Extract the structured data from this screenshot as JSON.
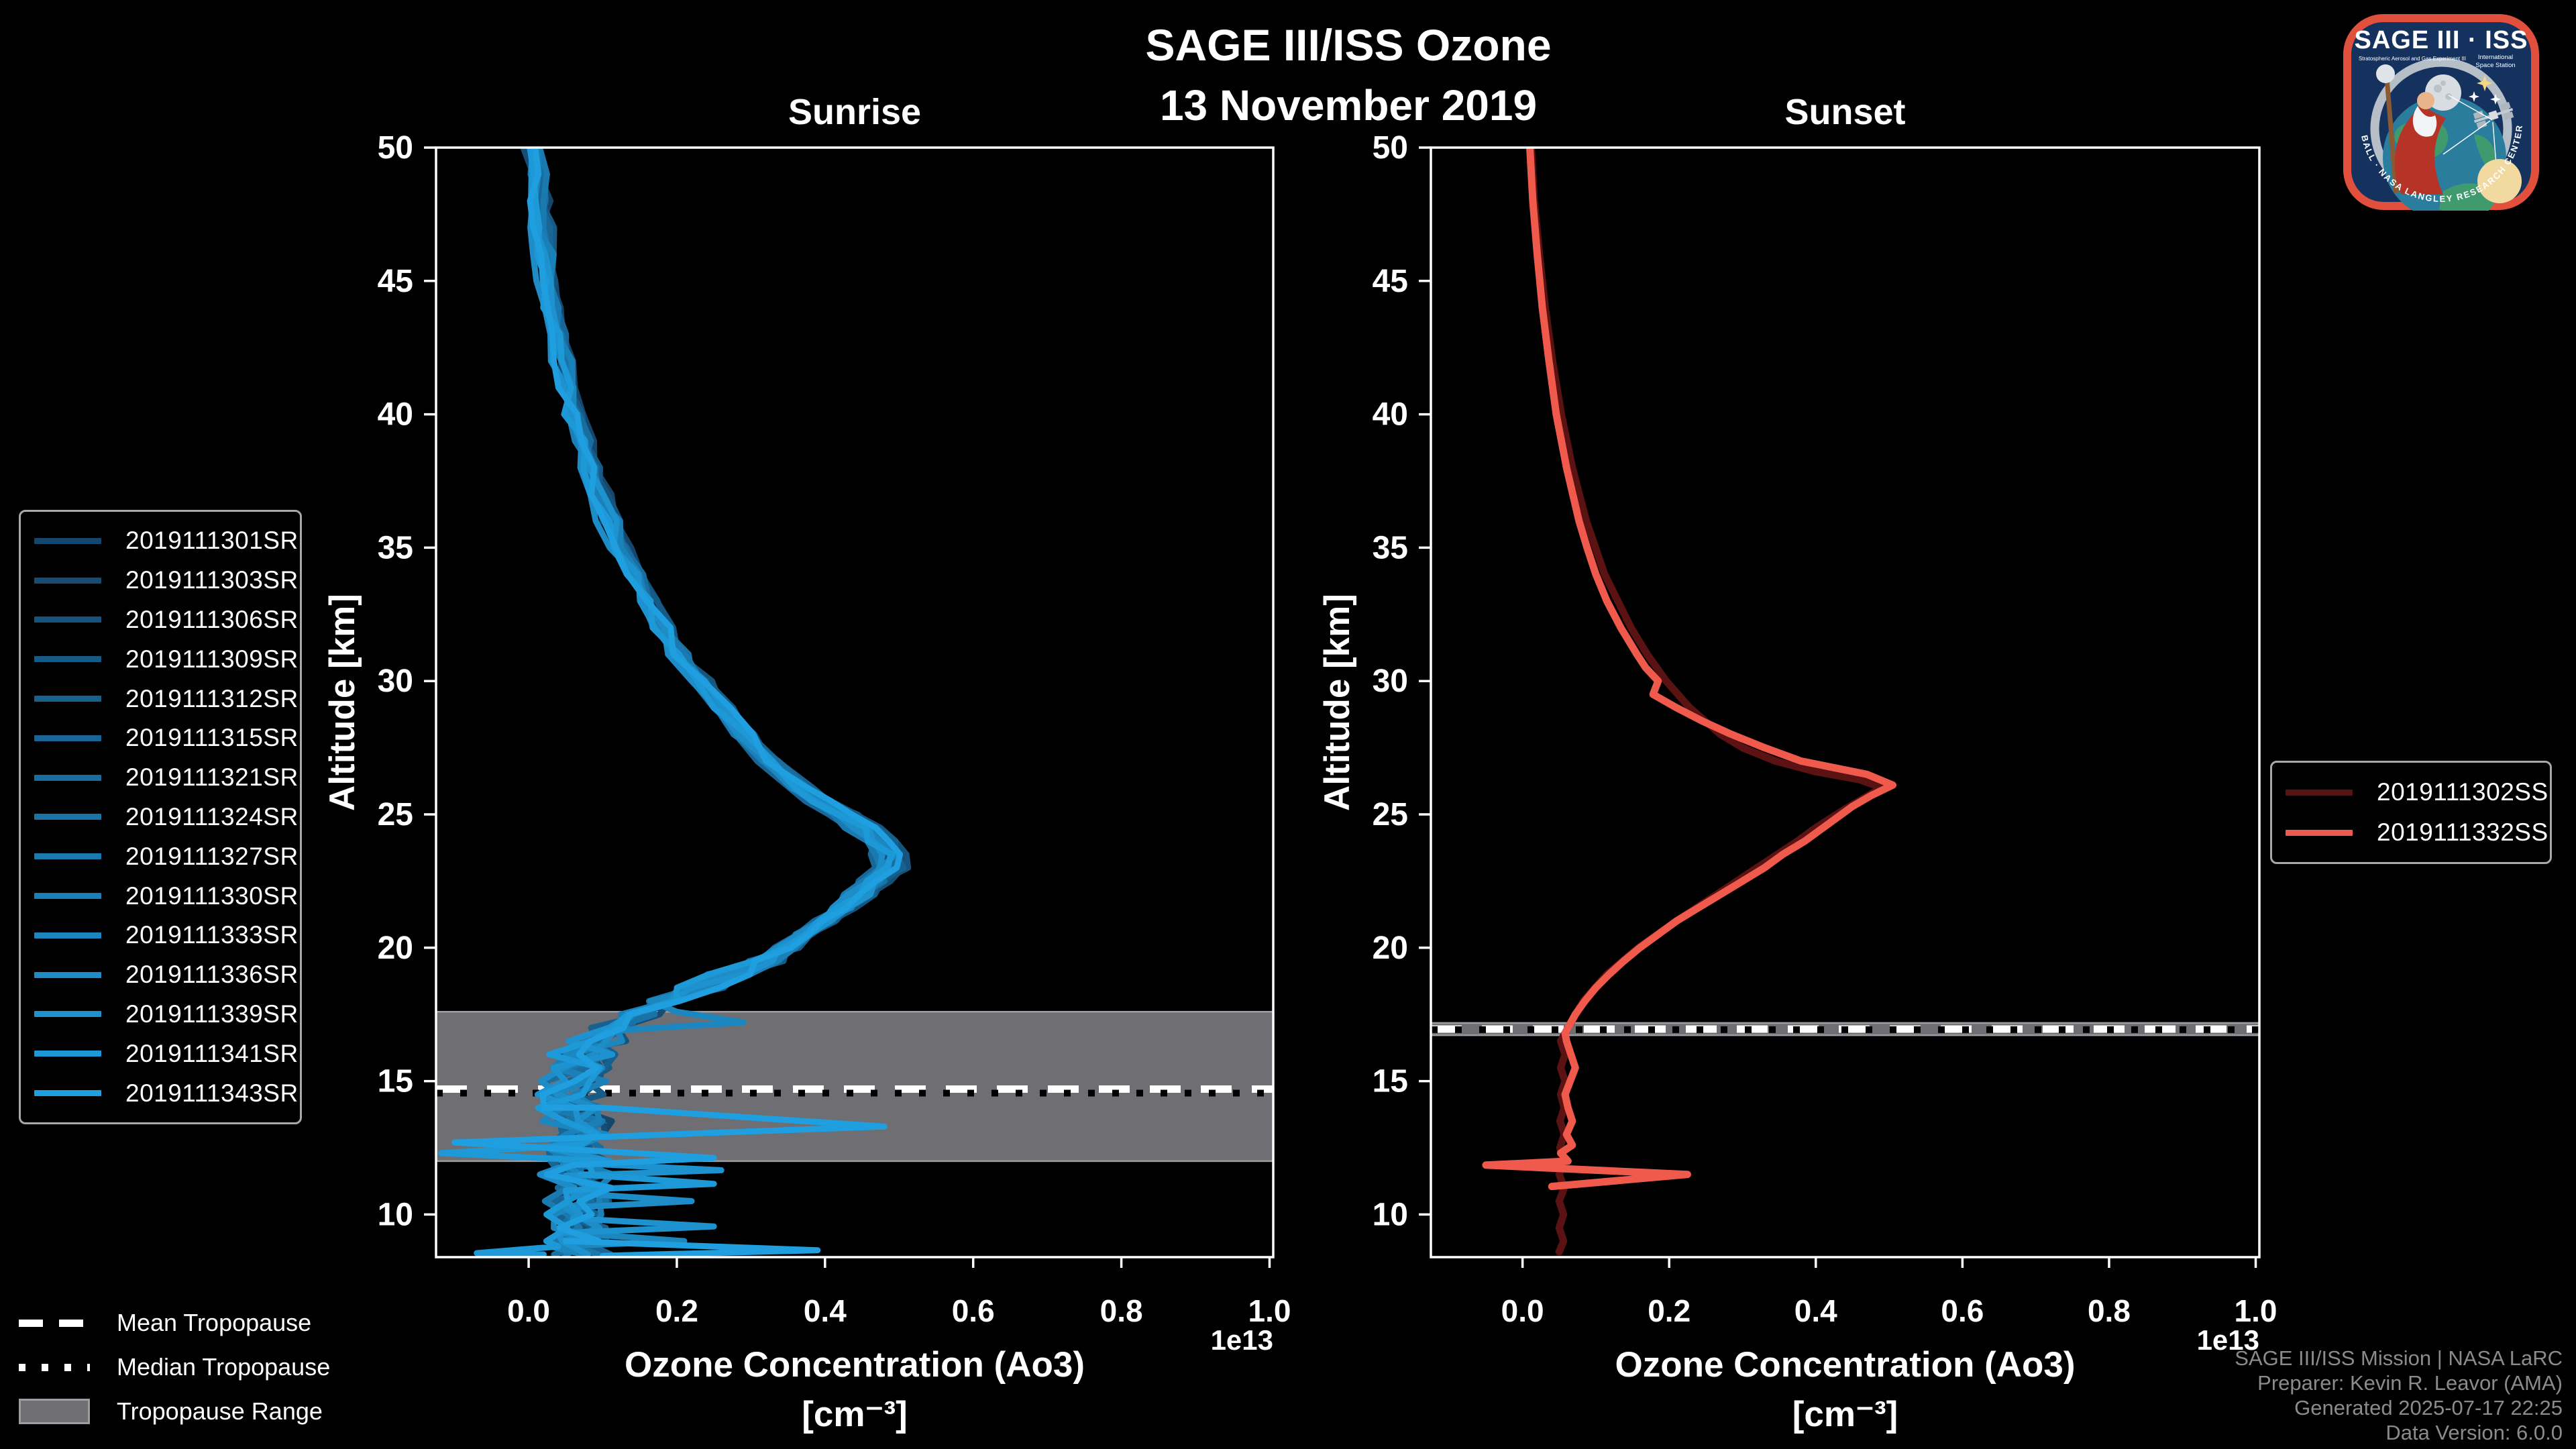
{
  "title": {
    "line1": "SAGE III/ISS Ozone",
    "line2": "13 November 2019"
  },
  "colors": {
    "background": "#000000",
    "axes": "#ffffff",
    "tropopause_band": "#6e6e73",
    "tropopause_band_border": "#9d9da2",
    "mean_line": "#ffffff",
    "median_line": "#000000",
    "credits_text": "#8b8b8b",
    "legend_border": "#a8a8a8"
  },
  "chart_data": {
    "type": "line",
    "orientation": "vertical-profile",
    "x_label": "Ozone Concentration (Ao3)",
    "x_unit": "[cm⁻³]",
    "x_offset_label": "1e13",
    "y_label": "Altitude [km]",
    "x_ticks": [
      0.0,
      0.2,
      0.4,
      0.6,
      0.8,
      1.0
    ],
    "y_ticks": [
      10,
      15,
      20,
      25,
      30,
      35,
      40,
      45,
      50
    ],
    "x_range": [
      -0.125,
      1.005
    ],
    "y_range": [
      8.4,
      50
    ],
    "grid": false,
    "panels": [
      {
        "id": "sunrise",
        "title": "Sunrise",
        "line_width": 9,
        "series_mode": "base_plus_jitter",
        "jitter": {
          "seed": 20191113,
          "amp_above_20": 0.012,
          "amp_17_20": 0.028,
          "amp_below_17": 0.045,
          "bias": 0.01,
          "scale_spread": 0.06
        },
        "base_profile": [
          [
            50,
            0.005
          ],
          [
            49,
            0.008
          ],
          [
            48,
            0.011
          ],
          [
            47,
            0.015
          ],
          [
            46,
            0.019
          ],
          [
            45,
            0.024
          ],
          [
            44,
            0.029
          ],
          [
            43,
            0.035
          ],
          [
            42,
            0.042
          ],
          [
            41,
            0.05
          ],
          [
            40,
            0.058
          ],
          [
            39,
            0.068
          ],
          [
            38,
            0.079
          ],
          [
            37,
            0.091
          ],
          [
            36,
            0.105
          ],
          [
            35,
            0.12
          ],
          [
            34,
            0.137
          ],
          [
            33,
            0.156
          ],
          [
            32,
            0.177
          ],
          [
            31,
            0.2
          ],
          [
            30,
            0.225
          ],
          [
            29,
            0.252
          ],
          [
            28,
            0.282
          ],
          [
            27,
            0.315
          ],
          [
            26,
            0.355
          ],
          [
            25.5,
            0.385
          ],
          [
            25,
            0.415
          ],
          [
            24.5,
            0.44
          ],
          [
            24,
            0.462
          ],
          [
            23.5,
            0.475
          ],
          [
            23,
            0.472
          ],
          [
            22.5,
            0.458
          ],
          [
            22,
            0.438
          ],
          [
            21.5,
            0.415
          ],
          [
            21,
            0.39
          ],
          [
            20.5,
            0.365
          ],
          [
            20,
            0.34
          ],
          [
            19.5,
            0.305
          ],
          [
            19,
            0.266
          ],
          [
            18.5,
            0.225
          ],
          [
            18,
            0.183
          ],
          [
            17.5,
            0.142
          ],
          [
            17,
            0.105
          ],
          [
            16.5,
            0.082
          ],
          [
            16,
            0.068
          ],
          [
            15.5,
            0.06
          ],
          [
            15,
            0.055
          ],
          [
            14.5,
            0.052
          ],
          [
            14,
            0.055
          ],
          [
            13.5,
            0.06
          ],
          [
            13,
            0.064
          ],
          [
            12.5,
            0.062
          ],
          [
            12,
            0.066
          ],
          [
            11.5,
            0.063
          ],
          [
            11,
            0.067
          ],
          [
            10.5,
            0.062
          ],
          [
            10,
            0.066
          ],
          [
            9.5,
            0.062
          ],
          [
            9,
            0.066
          ],
          [
            8.5,
            0.063
          ]
        ],
        "events": [
          {
            "name": "2019111301SR",
            "color": "#14476e"
          },
          {
            "name": "2019111303SR",
            "color": "#154d76"
          },
          {
            "name": "2019111306SR",
            "color": "#16547e"
          },
          {
            "name": "2019111309SR",
            "color": "#165a86"
          },
          {
            "name": "2019111312SR",
            "color": "#17608f"
          },
          {
            "name": "2019111315SR",
            "color": "#186697"
          },
          {
            "name": "2019111321SR",
            "color": "#196d9f"
          },
          {
            "name": "2019111324SR",
            "color": "#1a73a7"
          },
          {
            "name": "2019111327SR",
            "color": "#1a79af"
          },
          {
            "name": "2019111330SR",
            "color": "#1b80b7"
          },
          {
            "name": "2019111333SR",
            "color": "#1c86bf",
            "anomalies": [
              [
                [
                  17.6,
                  0.2
                ],
                [
                  17.2,
                  0.29
                ],
                [
                  16.9,
                  0.12
                ]
              ],
              [
                [
                  9.3,
                  0.06
                ],
                [
                  9.0,
                  0.21
                ],
                [
                  8.8,
                  0.03
                ]
              ]
            ]
          },
          {
            "name": "2019111336SR",
            "color": "#1d8cc7",
            "anomalies": [
              [
                [
                  10.8,
                  0.06
                ],
                [
                  10.5,
                  0.22
                ],
                [
                  10.25,
                  0.05
                ]
              ]
            ]
          },
          {
            "name": "2019111339SR",
            "color": "#1d92cf",
            "anomalies": [
              [
                [
                  11.9,
                  0.08
                ],
                [
                  11.66,
                  0.26
                ],
                [
                  11.45,
                  0.05
                ]
              ],
              [
                [
                  9.85,
                  0.06
                ],
                [
                  9.55,
                  0.25
                ],
                [
                  9.3,
                  0.04
                ]
              ]
            ]
          },
          {
            "name": "2019111341SR",
            "color": "#1e99d8",
            "anomalies": [
              [
                [
                  12.6,
                  0.07
                ],
                [
                  12.3,
                  -0.118
                ],
                [
                  12.0,
                  0.08
                ]
              ],
              [
                [
                  11.5,
                  0.07
                ],
                [
                  11.15,
                  0.25
                ],
                [
                  10.9,
                  0.05
                ]
              ],
              [
                [
                  8.8,
                  0.04
                ],
                [
                  8.55,
                  -0.07
                ]
              ]
            ]
          },
          {
            "name": "2019111343SR",
            "color": "#1f9fe0",
            "anomalies": [
              [
                [
                  14.0,
                  0.1
                ],
                [
                  13.3,
                  0.48
                ],
                [
                  12.7,
                  -0.1
                ],
                [
                  12.12,
                  0.25
                ],
                [
                  11.85,
                  0.06
                ]
              ],
              [
                [
                  9.0,
                  0.05
                ],
                [
                  8.66,
                  0.39
                ],
                [
                  8.45,
                  0.1
                ]
              ]
            ]
          }
        ],
        "tropopause": {
          "mean": 14.7,
          "median": 14.55,
          "range": [
            12.0,
            17.6
          ]
        }
      },
      {
        "id": "sunset",
        "title": "Sunset",
        "line_width": 11,
        "series_mode": "explicit",
        "events": [
          {
            "name": "2019111302SS",
            "color": "#5a1212",
            "profile": [
              [
                50,
                0.012
              ],
              [
                48,
                0.016
              ],
              [
                46,
                0.023
              ],
              [
                44,
                0.031
              ],
              [
                42,
                0.041
              ],
              [
                40,
                0.053
              ],
              [
                38,
                0.068
              ],
              [
                36,
                0.087
              ],
              [
                34,
                0.112
              ],
              [
                32,
                0.148
              ],
              [
                31,
                0.17
              ],
              [
                30,
                0.196
              ],
              [
                29,
                0.228
              ],
              [
                28,
                0.27
              ],
              [
                27.5,
                0.3
              ],
              [
                27,
                0.345
              ],
              [
                26.6,
                0.4
              ],
              [
                26.3,
                0.46
              ],
              [
                26.0,
                0.49
              ],
              [
                25.6,
                0.465
              ],
              [
                25.2,
                0.44
              ],
              [
                24.5,
                0.4
              ],
              [
                24,
                0.375
              ],
              [
                23,
                0.32
              ],
              [
                22,
                0.265
              ],
              [
                21,
                0.21
              ],
              [
                20,
                0.158
              ],
              [
                19,
                0.115
              ],
              [
                18,
                0.083
              ],
              [
                17,
                0.062
              ],
              [
                16.5,
                0.052
              ],
              [
                16,
                0.058
              ],
              [
                15.5,
                0.052
              ],
              [
                15,
                0.058
              ],
              [
                14.5,
                0.052
              ],
              [
                14,
                0.057
              ],
              [
                13.5,
                0.051
              ],
              [
                13,
                0.057
              ],
              [
                12.5,
                0.051
              ],
              [
                12,
                0.057
              ],
              [
                11.5,
                0.05
              ],
              [
                11,
                0.057
              ],
              [
                10.5,
                0.05
              ],
              [
                10,
                0.056
              ],
              [
                9.5,
                0.05
              ],
              [
                9,
                0.056
              ],
              [
                8.6,
                0.05
              ]
            ]
          },
          {
            "name": "2019111332SS",
            "color": "#ef5a4c",
            "profile": [
              [
                50,
                0.01
              ],
              [
                48,
                0.014
              ],
              [
                46,
                0.02
              ],
              [
                44,
                0.027
              ],
              [
                42,
                0.036
              ],
              [
                40,
                0.046
              ],
              [
                38,
                0.06
              ],
              [
                36,
                0.077
              ],
              [
                35,
                0.088
              ],
              [
                34,
                0.1
              ],
              [
                33,
                0.115
              ],
              [
                32,
                0.134
              ],
              [
                31,
                0.156
              ],
              [
                30.5,
                0.168
              ],
              [
                30,
                0.185
              ],
              [
                29.5,
                0.178
              ],
              [
                29,
                0.21
              ],
              [
                28.5,
                0.245
              ],
              [
                28,
                0.285
              ],
              [
                27.5,
                0.33
              ],
              [
                27,
                0.38
              ],
              [
                26.5,
                0.47
              ],
              [
                26.1,
                0.505
              ],
              [
                25.7,
                0.475
              ],
              [
                25.3,
                0.45
              ],
              [
                25,
                0.435
              ],
              [
                24.5,
                0.41
              ],
              [
                24,
                0.385
              ],
              [
                23.5,
                0.355
              ],
              [
                23,
                0.33
              ],
              [
                22.5,
                0.3
              ],
              [
                22,
                0.27
              ],
              [
                21.5,
                0.24
              ],
              [
                21,
                0.21
              ],
              [
                20.5,
                0.185
              ],
              [
                20,
                0.16
              ],
              [
                19.5,
                0.138
              ],
              [
                19,
                0.118
              ],
              [
                18.5,
                0.1
              ],
              [
                18,
                0.085
              ],
              [
                17.5,
                0.072
              ],
              [
                17,
                0.062
              ],
              [
                16.8,
                0.058
              ],
              [
                16.5,
                0.06
              ],
              [
                16,
                0.066
              ],
              [
                15.5,
                0.072
              ],
              [
                15,
                0.065
              ],
              [
                14.5,
                0.058
              ],
              [
                14,
                0.062
              ],
              [
                13.5,
                0.068
              ],
              [
                13,
                0.06
              ],
              [
                12.6,
                0.068
              ],
              [
                12.3,
                0.052
              ],
              [
                12,
                0.062
              ],
              [
                11.85,
                -0.05
              ],
              [
                11.5,
                0.225
              ],
              [
                11.05,
                0.04
              ]
            ]
          }
        ],
        "tropopause": {
          "mean": 16.95,
          "median": 16.93,
          "range": [
            16.72,
            17.18
          ]
        }
      }
    ]
  },
  "tropopause_legend": {
    "items": [
      {
        "label": "Mean Tropopause",
        "style": "dashed"
      },
      {
        "label": "Median Tropopause",
        "style": "dotted"
      },
      {
        "label": "Tropopause Range",
        "style": "box"
      }
    ]
  },
  "credits": [
    "SAGE III/ISS Mission | NASA LaRC",
    "Preparer: Kevin R. Leavor (AMA)",
    "Generated 2025-07-17 22:25",
    "Data Version: 6.0.0"
  ],
  "logo": {
    "title": "SAGE III · ISS",
    "subtitle_left": "Stratospheric Aerosol and Gas Experiment III",
    "subtitle_right_line1": "International",
    "subtitle_right_line2": "Space Station",
    "border_text": "BALL · NASA LANGLEY RESEARCH CENTER · TAS-I · ESA"
  }
}
